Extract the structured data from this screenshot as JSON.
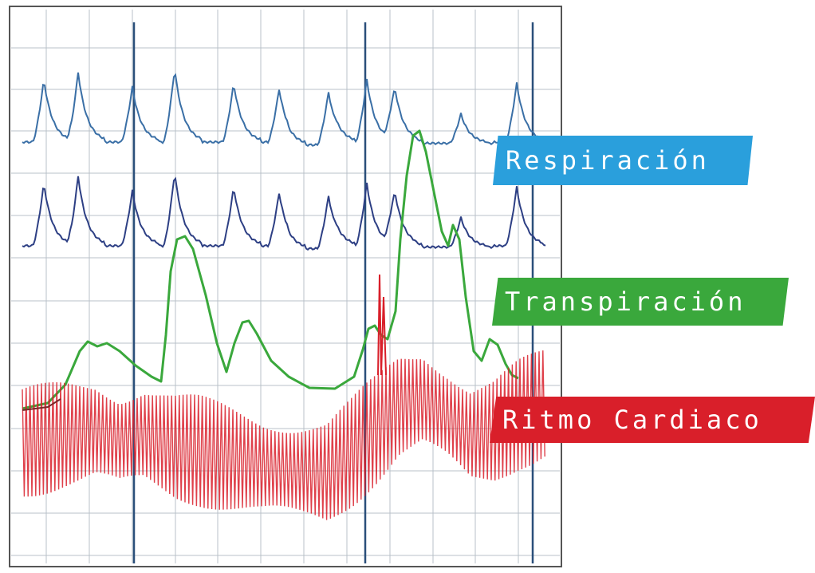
{
  "chart_data": {
    "type": "line",
    "title": "",
    "xlabel": "",
    "ylabel": "",
    "grid": true,
    "legend_placement": "right",
    "series": [
      {
        "name": "Respiración",
        "color": "#2a9fdc"
      },
      {
        "name": "Transpiración",
        "color": "#3aa83c"
      },
      {
        "name": "Ritmo Cardiaco",
        "color": "#d91f2a"
      }
    ]
  },
  "colors": {
    "grid": "#b9c1c8",
    "marker": "#2a4f7a",
    "resp_upper": "#3a6fa6",
    "resp_lower": "#2d3f84",
    "frame": "#555555"
  }
}
